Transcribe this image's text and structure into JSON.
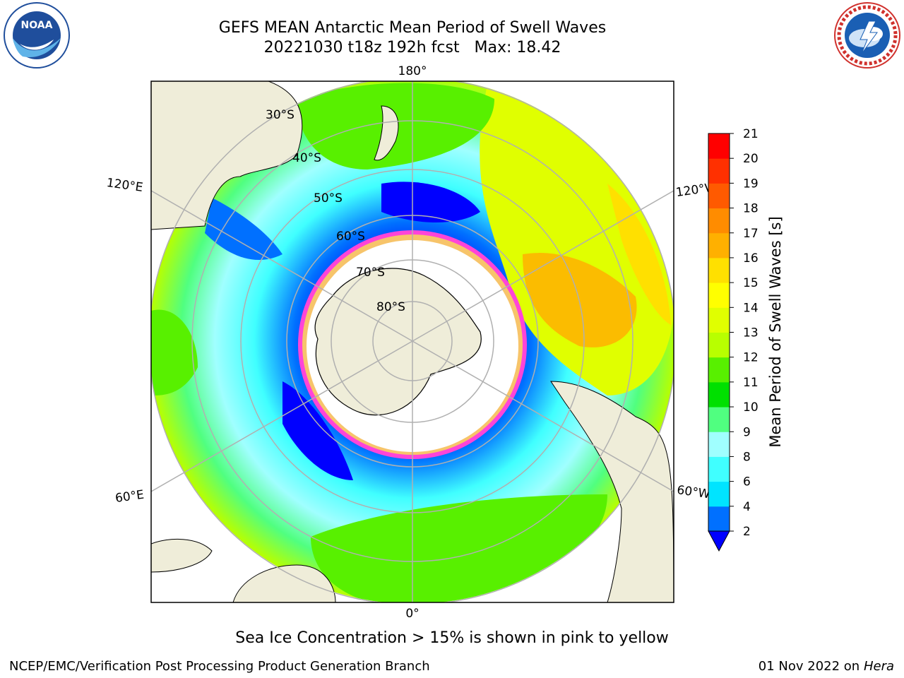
{
  "header": {
    "title_line1": "GEFS MEAN Antarctic Mean Period of Swell Waves",
    "title_line2": "20221030 t18z 192h fcst   Max: 18.42"
  },
  "logos": {
    "left": {
      "icon": "noaa-logo-icon",
      "text": "NOAA"
    },
    "right": {
      "icon": "national-weather-service-logo-icon"
    }
  },
  "map": {
    "projection": "south-polar-stereographic",
    "longitude_labels": {
      "top": "180°",
      "bottom": "0°",
      "left_upper": "120°E",
      "right_upper": "120°W",
      "left_lower": "60°E",
      "right_lower": "60°W"
    },
    "latitude_labels": [
      "30°S",
      "40°S",
      "50°S",
      "60°S",
      "70°S",
      "80°S"
    ],
    "colors": {
      "land": "#efedd9",
      "ice_pink": "#ff44d8",
      "ice_yellow": "#f7c46a",
      "grid": "#b0b0b0"
    }
  },
  "colorbar": {
    "label": "Mean Period of Swell Waves [s]",
    "ticks": [
      "2",
      "4",
      "6",
      "8",
      "9",
      "10",
      "11",
      "12",
      "13",
      "14",
      "15",
      "16",
      "17",
      "18",
      "19",
      "20",
      "21"
    ],
    "colors": [
      "#0070ff",
      "#00e4ff",
      "#40ffff",
      "#a0ffff",
      "#50ff80",
      "#00e000",
      "#58f000",
      "#b8ff00",
      "#e0ff00",
      "#ffff00",
      "#ffe000",
      "#ffb000",
      "#ff8c00",
      "#ff5a00",
      "#ff3000",
      "#ff0000"
    ],
    "extend_color": "#0000ff"
  },
  "footer": {
    "note": "Sea Ice Concentration > 15% is shown in pink to yellow",
    "credit_left": "NCEP/EMC/Verification Post Processing Product Generation Branch",
    "date_prefix": "01 Nov 2022 on",
    "date_machine": "Hera"
  }
}
